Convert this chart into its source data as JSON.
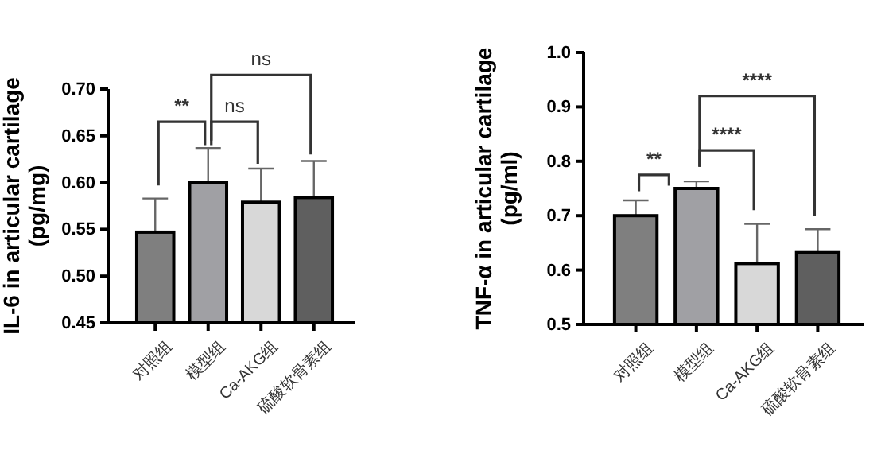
{
  "chart_data": [
    {
      "type": "bar",
      "ylabel": "IL-6 in articular cartilage\n(pg/mg)",
      "categories": [
        "对照组",
        "模型组",
        "Ca-AKG组",
        "硫酸软骨素组"
      ],
      "values": [
        0.547,
        0.6,
        0.579,
        0.584
      ],
      "colors": [
        "#7f7f7f",
        "#a0a0a4",
        "#d8d8d8",
        "#5f5f5f"
      ],
      "errors": [
        [
          0.547,
          0.583
        ],
        [
          0.6,
          0.637
        ],
        [
          0.579,
          0.615
        ],
        [
          0.584,
          0.623
        ]
      ],
      "ylim": [
        0.45,
        0.7
      ],
      "yticks": [
        {
          "value": 0.45,
          "label": "0.45"
        },
        {
          "value": 0.5,
          "label": "0.50"
        },
        {
          "value": 0.55,
          "label": "0.55"
        },
        {
          "value": 0.6,
          "label": "0.60"
        },
        {
          "value": 0.65,
          "label": "0.65"
        },
        {
          "value": 0.7,
          "label": "0.70"
        }
      ],
      "annotations": [
        "**",
        "ns",
        "ns"
      ]
    },
    {
      "type": "bar",
      "ylabel": "TNF-α in articular cartilage\n(pg/ml)",
      "categories": [
        "对照组",
        "模型组",
        "Ca-AKG组",
        "硫酸软骨素组"
      ],
      "values": [
        0.7,
        0.75,
        0.612,
        0.632
      ],
      "colors": [
        "#7f7f7f",
        "#a0a0a4",
        "#d8d8d8",
        "#5f5f5f"
      ],
      "errors": [
        [
          0.7,
          0.728
        ],
        [
          0.75,
          0.763
        ],
        [
          0.612,
          0.685
        ],
        [
          0.632,
          0.675
        ]
      ],
      "ylim": [
        0.5,
        1.0
      ],
      "yticks": [
        0.5,
        0.6,
        0.7,
        0.8,
        0.9,
        {
          "value": 1.0,
          "label": "1.0"
        }
      ],
      "annotations": [
        "**",
        "****",
        "****"
      ]
    }
  ]
}
